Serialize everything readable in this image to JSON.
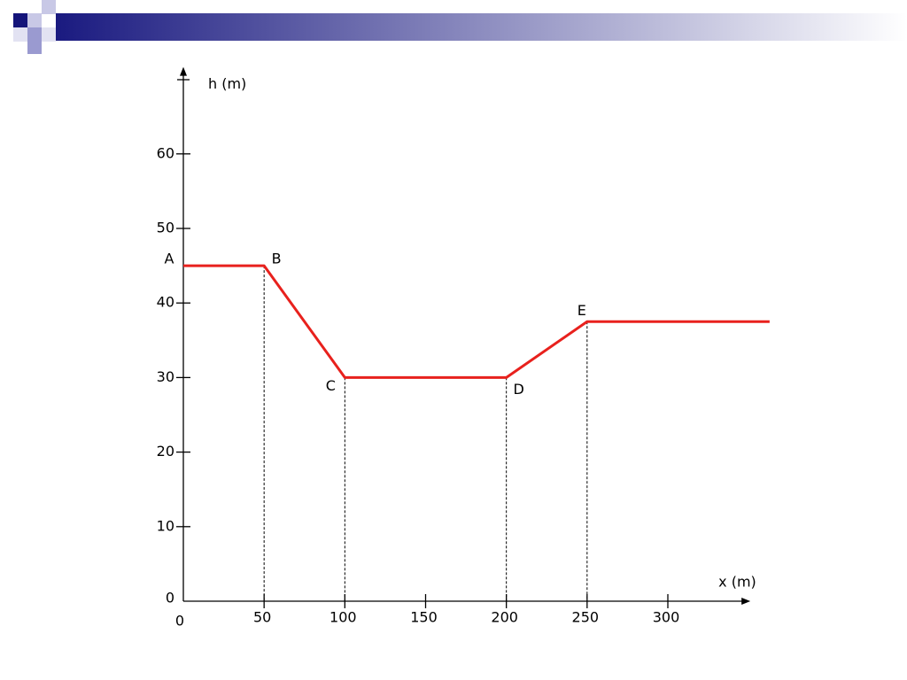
{
  "chart_data": {
    "type": "line",
    "x_label": "x (m)",
    "y_label": "h (m)",
    "x": [
      0,
      50,
      100,
      200,
      250,
      363
    ],
    "series": [
      {
        "color": "#e8211d",
        "values": [
          45,
          45,
          30,
          30,
          37.5,
          37.5
        ]
      }
    ],
    "point_labels": [
      "A",
      "B",
      "C",
      "D",
      "E",
      null
    ],
    "xlim": [
      0,
      350
    ],
    "ylim": [
      0,
      70
    ],
    "xticks": [
      0,
      50,
      100,
      150,
      200,
      250,
      300
    ],
    "yticks": [
      0,
      10,
      20,
      30,
      40,
      50,
      60
    ],
    "drop_lines": true
  }
}
